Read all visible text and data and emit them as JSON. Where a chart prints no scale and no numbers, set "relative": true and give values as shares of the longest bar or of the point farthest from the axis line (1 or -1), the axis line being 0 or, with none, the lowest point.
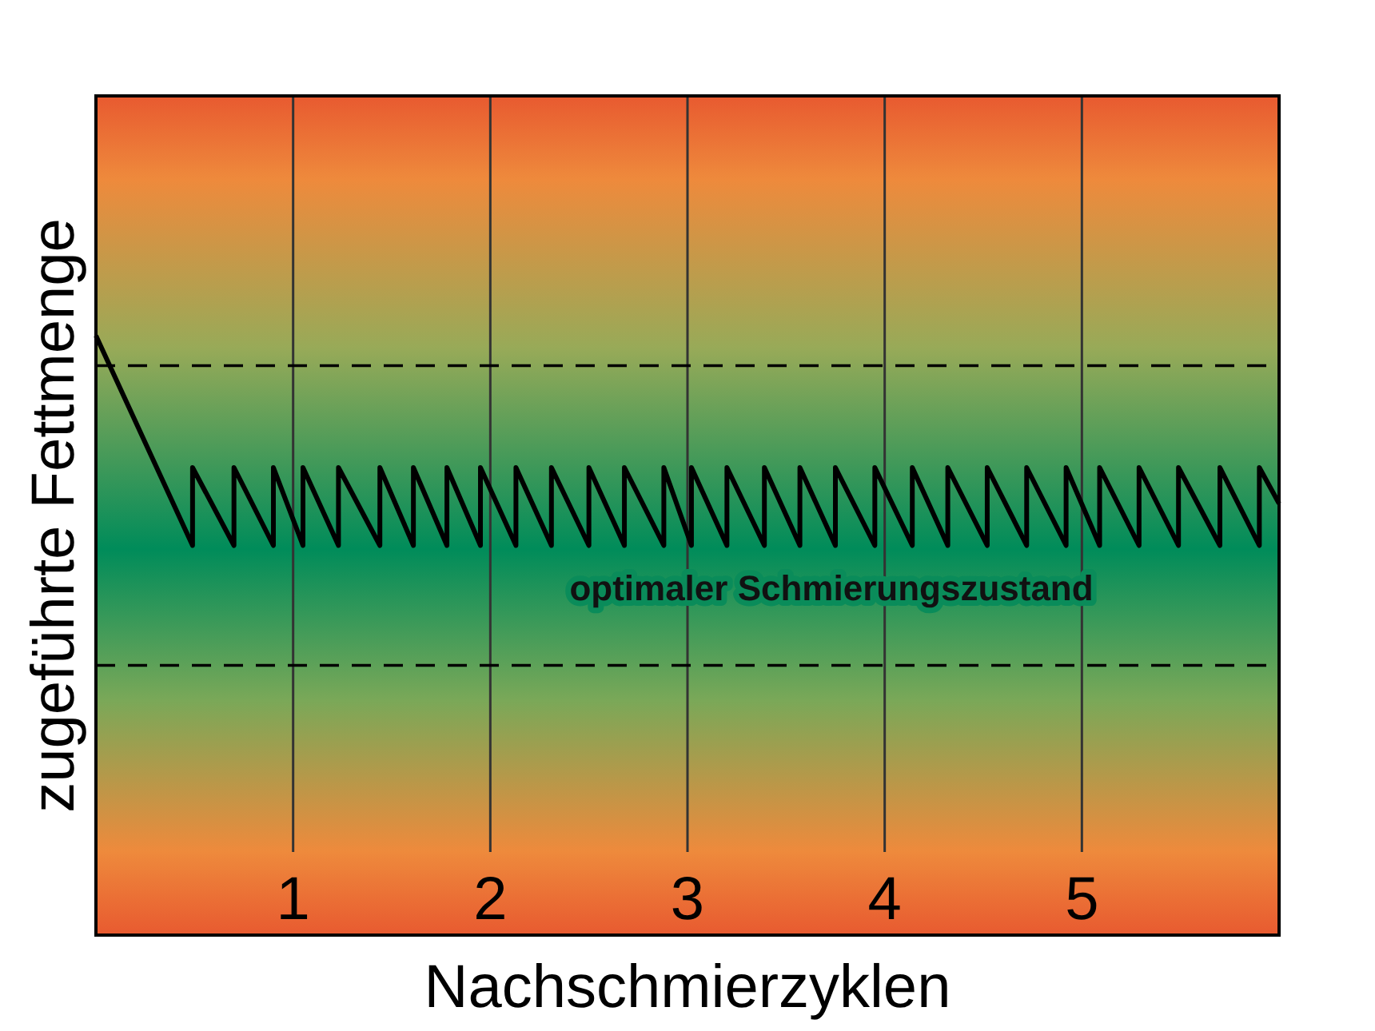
{
  "chart_data": {
    "type": "line",
    "relative": true,
    "xlabel": "Nachschmierzyklen",
    "ylabel": "zugeführte Fettmenge",
    "xlim": [
      0,
      6
    ],
    "xticks": [
      1,
      2,
      3,
      4,
      5
    ],
    "grid": "x",
    "tick_labels": "x",
    "series": [
      {
        "color": "#000000",
        "x": [
          0,
          0.49,
          0.49,
          0.7,
          0.7,
          0.9,
          0.9,
          1.05,
          1.05,
          1.23,
          1.23,
          1.44,
          1.44,
          1.61,
          1.61,
          1.78,
          1.78,
          1.95,
          1.95,
          2.13,
          2.13,
          2.31,
          2.31,
          2.5,
          2.5,
          2.68,
          2.68,
          2.88,
          2.88,
          3.02,
          3.02,
          3.2,
          3.2,
          3.39,
          3.39,
          3.57,
          3.57,
          3.75,
          3.75,
          3.95,
          3.95,
          4.14,
          4.14,
          4.32,
          4.32,
          4.52,
          4.52,
          4.72,
          4.72,
          4.92,
          4.92,
          5.09,
          5.09,
          5.29,
          5.29,
          5.49,
          5.49,
          5.7,
          5.7,
          5.9,
          5.9,
          6.0
        ],
        "values": [
          1,
          0.65,
          0.78,
          0.65,
          0.78,
          0.65,
          0.78,
          0.65,
          0.78,
          0.65,
          0.78,
          0.65,
          0.78,
          0.65,
          0.78,
          0.65,
          0.78,
          0.65,
          0.78,
          0.65,
          0.78,
          0.65,
          0.78,
          0.65,
          0.78,
          0.65,
          0.78,
          0.65,
          0.78,
          0.65,
          0.78,
          0.65,
          0.78,
          0.65,
          0.78,
          0.65,
          0.78,
          0.65,
          0.78,
          0.65,
          0.78,
          0.65,
          0.78,
          0.65,
          0.78,
          0.65,
          0.78,
          0.65,
          0.78,
          0.65,
          0.78,
          0.65,
          0.78,
          0.65,
          0.78,
          0.65,
          0.78,
          0.65,
          0.78,
          0.65,
          0.78,
          0.72
        ]
      }
    ],
    "ref_lines": [
      {
        "axis": "y",
        "value": 0.95,
        "color": "#000000",
        "line_style": "dashed"
      },
      {
        "axis": "y",
        "value": 0.45,
        "color": "#000000",
        "line_style": "dashed"
      }
    ],
    "annotations": [
      "optimaler Schmierungszustand"
    ]
  }
}
